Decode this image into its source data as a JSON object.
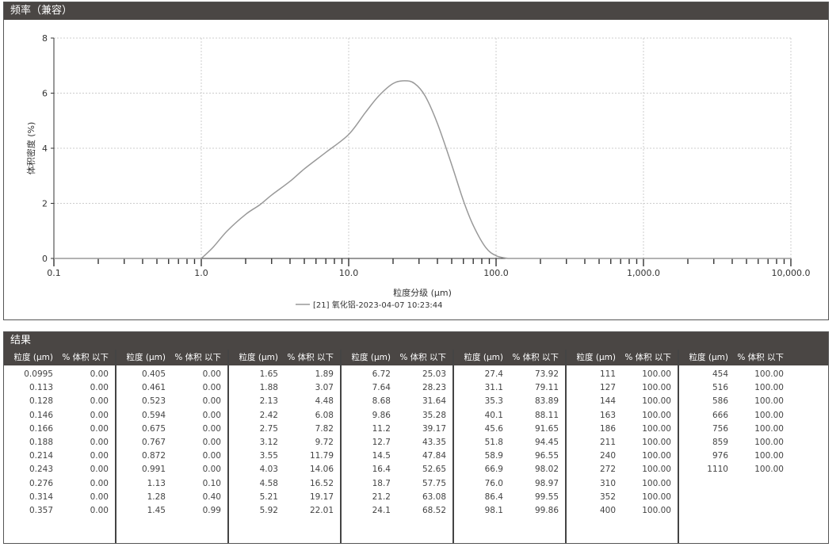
{
  "chart_panel": {
    "title": "频率（兼容）"
  },
  "chart_data": {
    "type": "line",
    "xlabel": "粒度分级 (μm)",
    "ylabel": "体积密度 (%)",
    "xscale": "log",
    "xlim": [
      0.1,
      10000
    ],
    "ylim": [
      0,
      8
    ],
    "xticks": [
      "0.1",
      "1.0",
      "10.0",
      "100.0",
      "1,000.0",
      "10,000.0"
    ],
    "yticks": [
      "0",
      "2",
      "4",
      "6",
      "8"
    ],
    "grid": true,
    "legend_position": "bottom",
    "series": [
      {
        "name": "[21] 氧化铝-2023-04-07 10:23:44",
        "color": "#999999",
        "x": [
          1.0,
          1.2,
          1.5,
          2.0,
          2.5,
          3.0,
          4.0,
          5.0,
          7.0,
          10.0,
          13.0,
          16.0,
          20.0,
          24.0,
          28.0,
          33.0,
          40.0,
          50.0,
          60.0,
          70.0,
          85.0,
          100.0,
          120.0
        ],
        "y": [
          0,
          0.4,
          1.0,
          1.6,
          1.95,
          2.3,
          2.8,
          3.25,
          3.85,
          4.5,
          5.3,
          5.9,
          6.35,
          6.45,
          6.35,
          5.9,
          4.9,
          3.4,
          2.1,
          1.2,
          0.4,
          0.1,
          0
        ]
      }
    ]
  },
  "table": {
    "title": "结果",
    "col_size": "粒度 (μm)",
    "col_vol": "% 体积 以下",
    "columns": [
      [
        [
          "0.0995",
          "0.00"
        ],
        [
          "0.113",
          "0.00"
        ],
        [
          "0.128",
          "0.00"
        ],
        [
          "0.146",
          "0.00"
        ],
        [
          "0.166",
          "0.00"
        ],
        [
          "0.188",
          "0.00"
        ],
        [
          "0.214",
          "0.00"
        ],
        [
          "0.243",
          "0.00"
        ],
        [
          "0.276",
          "0.00"
        ],
        [
          "0.314",
          "0.00"
        ],
        [
          "0.357",
          "0.00"
        ]
      ],
      [
        [
          "0.405",
          "0.00"
        ],
        [
          "0.461",
          "0.00"
        ],
        [
          "0.523",
          "0.00"
        ],
        [
          "0.594",
          "0.00"
        ],
        [
          "0.675",
          "0.00"
        ],
        [
          "0.767",
          "0.00"
        ],
        [
          "0.872",
          "0.00"
        ],
        [
          "0.991",
          "0.00"
        ],
        [
          "1.13",
          "0.10"
        ],
        [
          "1.28",
          "0.40"
        ],
        [
          "1.45",
          "0.99"
        ]
      ],
      [
        [
          "1.65",
          "1.89"
        ],
        [
          "1.88",
          "3.07"
        ],
        [
          "2.13",
          "4.48"
        ],
        [
          "2.42",
          "6.08"
        ],
        [
          "2.75",
          "7.82"
        ],
        [
          "3.12",
          "9.72"
        ],
        [
          "3.55",
          "11.79"
        ],
        [
          "4.03",
          "14.06"
        ],
        [
          "4.58",
          "16.52"
        ],
        [
          "5.21",
          "19.17"
        ],
        [
          "5.92",
          "22.01"
        ]
      ],
      [
        [
          "6.72",
          "25.03"
        ],
        [
          "7.64",
          "28.23"
        ],
        [
          "8.68",
          "31.64"
        ],
        [
          "9.86",
          "35.28"
        ],
        [
          "11.2",
          "39.17"
        ],
        [
          "12.7",
          "43.35"
        ],
        [
          "14.5",
          "47.84"
        ],
        [
          "16.4",
          "52.65"
        ],
        [
          "18.7",
          "57.75"
        ],
        [
          "21.2",
          "63.08"
        ],
        [
          "24.1",
          "68.52"
        ]
      ],
      [
        [
          "27.4",
          "73.92"
        ],
        [
          "31.1",
          "79.11"
        ],
        [
          "35.3",
          "83.89"
        ],
        [
          "40.1",
          "88.11"
        ],
        [
          "45.6",
          "91.65"
        ],
        [
          "51.8",
          "94.45"
        ],
        [
          "58.9",
          "96.55"
        ],
        [
          "66.9",
          "98.02"
        ],
        [
          "76.0",
          "98.97"
        ],
        [
          "86.4",
          "99.55"
        ],
        [
          "98.1",
          "99.86"
        ]
      ],
      [
        [
          "111",
          "100.00"
        ],
        [
          "127",
          "100.00"
        ],
        [
          "144",
          "100.00"
        ],
        [
          "163",
          "100.00"
        ],
        [
          "186",
          "100.00"
        ],
        [
          "211",
          "100.00"
        ],
        [
          "240",
          "100.00"
        ],
        [
          "272",
          "100.00"
        ],
        [
          "310",
          "100.00"
        ],
        [
          "352",
          "100.00"
        ],
        [
          "400",
          "100.00"
        ]
      ],
      [
        [
          "454",
          "100.00"
        ],
        [
          "516",
          "100.00"
        ],
        [
          "586",
          "100.00"
        ],
        [
          "666",
          "100.00"
        ],
        [
          "756",
          "100.00"
        ],
        [
          "859",
          "100.00"
        ],
        [
          "976",
          "100.00"
        ],
        [
          "1110",
          "100.00"
        ]
      ]
    ]
  }
}
